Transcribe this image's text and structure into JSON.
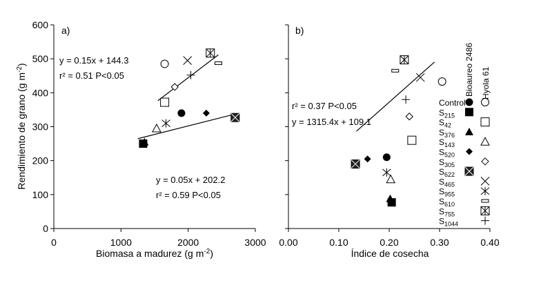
{
  "chart_data": [
    {
      "type": "scatter",
      "panel_label": "a)",
      "xlabel": "Biomasa a madurez (g m",
      "xlabel_sup": "-2",
      "xlabel_end": ")",
      "ylabel": "Rendimiento de grano (g m",
      "ylabel_sup": "-2",
      "ylabel_end": ")",
      "xlim": [
        0,
        3000
      ],
      "ylim": [
        0,
        600
      ],
      "xticks": [
        0,
        1000,
        2000,
        3000
      ],
      "yticks": [
        0,
        100,
        200,
        300,
        400,
        500,
        600
      ],
      "grid": false,
      "annotations": [
        {
          "id": "hyola_eq",
          "text": "y = 0.15x + 144.3"
        },
        {
          "id": "hyola_r2",
          "text": "r² = 0.51 P<0.05"
        },
        {
          "id": "bio_eq",
          "text": "y = 0.05x + 202.2"
        },
        {
          "id": "bio_r2",
          "text": "r² = 0.59 P<0.05"
        }
      ],
      "series": [
        {
          "name": "Bioaureo 2486",
          "points": [
            {
              "x": 1900,
              "y": 340,
              "marker": "circle-filled"
            },
            {
              "x": 1330,
              "y": 250,
              "marker": "square-filled"
            },
            {
              "x": 1350,
              "y": 255,
              "marker": "triangle-filled"
            },
            {
              "x": 2270,
              "y": 340,
              "marker": "diamond-filled"
            },
            {
              "x": 2700,
              "y": 327,
              "marker": "square-x-filled"
            }
          ]
        },
        {
          "name": "Hyola 61",
          "points": [
            {
              "x": 1650,
              "y": 485,
              "marker": "circle-open"
            },
            {
              "x": 1650,
              "y": 372,
              "marker": "square-open"
            },
            {
              "x": 1530,
              "y": 295,
              "marker": "triangle-open"
            },
            {
              "x": 1800,
              "y": 417,
              "marker": "diamond-open"
            },
            {
              "x": 1990,
              "y": 495,
              "marker": "x"
            },
            {
              "x": 1670,
              "y": 310,
              "marker": "asterisk"
            },
            {
              "x": 2450,
              "y": 487,
              "marker": "rect-flat-open"
            },
            {
              "x": 2330,
              "y": 517,
              "marker": "square-x-open"
            },
            {
              "x": 2040,
              "y": 452,
              "marker": "plus"
            }
          ]
        }
      ],
      "trendlines": [
        {
          "series": "Hyola 61",
          "slope": 0.15,
          "intercept": 144.3,
          "x_range": [
            1550,
            2450
          ]
        },
        {
          "series": "Bioaureo 2486",
          "slope": 0.05,
          "intercept": 202.2,
          "x_range": [
            1250,
            2650
          ]
        }
      ]
    },
    {
      "type": "scatter",
      "panel_label": "b)",
      "xlabel": "Índice de cosecha",
      "xlim": [
        0,
        0.4
      ],
      "ylim": [
        0,
        600
      ],
      "xticks": [
        "0.00",
        "0.10",
        "0.20",
        "0.30",
        "0.40"
      ],
      "yticks": [
        0,
        100,
        200,
        300,
        400,
        500,
        600
      ],
      "grid": false,
      "annotations": [
        {
          "id": "b_r2",
          "text": "r² = 0.37 P<0.05"
        },
        {
          "id": "b_eq",
          "text": "y = 1315.4x + 109.1"
        }
      ],
      "series": [
        {
          "name": "Bioaureo 2486",
          "points": [
            {
              "x": 0.195,
              "y": 210,
              "marker": "circle-filled"
            },
            {
              "x": 0.205,
              "y": 77,
              "marker": "square-filled"
            },
            {
              "x": 0.202,
              "y": 88,
              "marker": "triangle-filled"
            },
            {
              "x": 0.157,
              "y": 205,
              "marker": "diamond-filled"
            },
            {
              "x": 0.133,
              "y": 190,
              "marker": "square-x-filled"
            }
          ]
        },
        {
          "name": "Hyola 61",
          "points": [
            {
              "x": 0.305,
              "y": 433,
              "marker": "circle-open"
            },
            {
              "x": 0.245,
              "y": 260,
              "marker": "square-open"
            },
            {
              "x": 0.203,
              "y": 145,
              "marker": "triangle-open"
            },
            {
              "x": 0.24,
              "y": 330,
              "marker": "diamond-open"
            },
            {
              "x": 0.262,
              "y": 445,
              "marker": "x"
            },
            {
              "x": 0.195,
              "y": 165,
              "marker": "asterisk"
            },
            {
              "x": 0.212,
              "y": 465,
              "marker": "rect-flat-open"
            },
            {
              "x": 0.23,
              "y": 497,
              "marker": "square-x-open"
            },
            {
              "x": 0.233,
              "y": 380,
              "marker": "plus"
            }
          ]
        }
      ],
      "trendlines": [
        {
          "series": "all",
          "slope": 1315.4,
          "intercept": 109.1,
          "x_range": [
            0.135,
            0.29
          ]
        }
      ],
      "legend": {
        "placement": "right",
        "column_headers": [
          "Bioaureo 2486",
          "Hyola 61"
        ],
        "rows": [
          {
            "label": "Control",
            "sub": "",
            "markers": [
              "circle-filled",
              "circle-open"
            ]
          },
          {
            "label": "S",
            "sub": "215",
            "markers": [
              "square-filled",
              ""
            ]
          },
          {
            "label": "S",
            "sub": "42",
            "markers": [
              "",
              "square-open"
            ]
          },
          {
            "label": "S",
            "sub": "376",
            "markers": [
              "triangle-filled",
              ""
            ]
          },
          {
            "label": "S",
            "sub": "143",
            "markers": [
              "",
              "triangle-open"
            ]
          },
          {
            "label": "S",
            "sub": "520",
            "markers": [
              "diamond-filled",
              ""
            ]
          },
          {
            "label": "S",
            "sub": "305",
            "markers": [
              "",
              "diamond-open"
            ]
          },
          {
            "label": "S",
            "sub": "622",
            "markers": [
              "square-x-filled",
              ""
            ]
          },
          {
            "label": "S",
            "sub": "465",
            "markers": [
              "",
              "x"
            ]
          },
          {
            "label": "S",
            "sub": "955",
            "markers": [
              "",
              "asterisk"
            ]
          },
          {
            "label": "S",
            "sub": "610",
            "markers": [
              "",
              "rect-flat-open"
            ]
          },
          {
            "label": "S",
            "sub": "755",
            "markers": [
              "",
              "square-x-open"
            ]
          },
          {
            "label": "S",
            "sub": "1044",
            "markers": [
              "",
              "plus"
            ]
          }
        ]
      }
    }
  ]
}
